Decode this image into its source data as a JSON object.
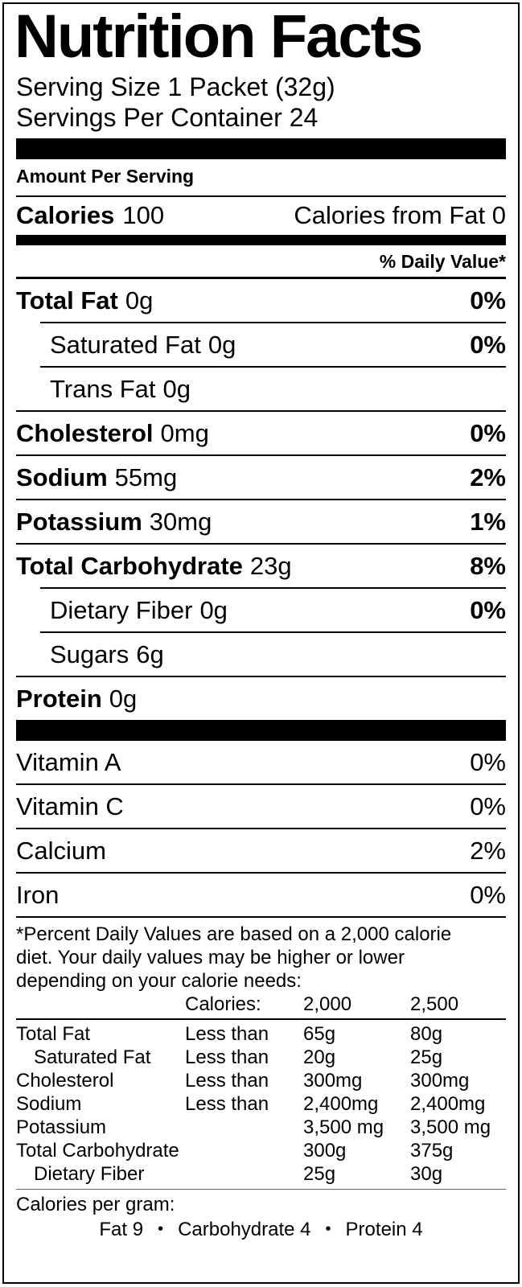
{
  "colors": {
    "ink": "#000000",
    "paper": "#ffffff"
  },
  "header": {
    "title": "Nutrition Facts",
    "serving_size": "Serving Size 1 Packet (32g)",
    "servings_per_container": "Servings Per Container 24",
    "amount_per_serving": "Amount Per Serving"
  },
  "calories": {
    "label": "Calories",
    "value": "100",
    "from_fat": "Calories from Fat 0"
  },
  "daily_value_header": "% Daily Value*",
  "nutrients": [
    {
      "name": "Total Fat",
      "amount": "0g",
      "dv": "0%"
    },
    {
      "name": "Saturated Fat",
      "amount": "0g",
      "dv": "0%"
    },
    {
      "name": "Trans Fat",
      "amount": "0g",
      "dv": ""
    },
    {
      "name": "Cholesterol",
      "amount": "0mg",
      "dv": "0%"
    },
    {
      "name": "Sodium",
      "amount": "55mg",
      "dv": "2%"
    },
    {
      "name": "Potassium",
      "amount": "30mg",
      "dv": "1%"
    },
    {
      "name": "Total Carbohydrate",
      "amount": "23g",
      "dv": "8%"
    },
    {
      "name": "Dietary Fiber",
      "amount": "0g",
      "dv": "0%"
    },
    {
      "name": "Sugars",
      "amount": "6g",
      "dv": ""
    },
    {
      "name": "Protein",
      "amount": "0g",
      "dv": ""
    }
  ],
  "vitamins": [
    {
      "name": "Vitamin A",
      "dv": "0%"
    },
    {
      "name": "Vitamin C",
      "dv": "0%"
    },
    {
      "name": "Calcium",
      "dv": "2%"
    },
    {
      "name": "Iron",
      "dv": "0%"
    }
  ],
  "footnote": {
    "lines": [
      "*Percent Daily Values are based on a 2,000 calorie",
      "diet. Your daily values may be higher or lower",
      "depending on your calorie needs:"
    ],
    "table": {
      "header": {
        "label": "Calories:",
        "v1": "2,000",
        "v2": "2,500"
      },
      "rows": [
        {
          "name": "Total Fat",
          "qual": "Less than",
          "v1": "65g",
          "v2": "80g"
        },
        {
          "name": "Saturated Fat",
          "qual": "Less than",
          "v1": "20g",
          "v2": "25g"
        },
        {
          "name": "Cholesterol",
          "qual": "Less than",
          "v1": "300mg",
          "v2": "300mg"
        },
        {
          "name": "Sodium",
          "qual": "Less than",
          "v1": "2,400mg",
          "v2": "2,400mg"
        },
        {
          "name": "Potassium",
          "qual": "",
          "v1": "3,500 mg",
          "v2": "3,500 mg"
        },
        {
          "name": "Total Carbohydrate",
          "qual": "",
          "v1": "300g",
          "v2": "375g"
        },
        {
          "name": "Dietary Fiber",
          "qual": "",
          "v1": "25g",
          "v2": "30g"
        }
      ]
    },
    "calories_per_gram": "Calories per gram:",
    "cpg_parts": [
      "Fat 9",
      "Carbohydrate 4",
      "Protein 4"
    ],
    "bullet": "•"
  }
}
